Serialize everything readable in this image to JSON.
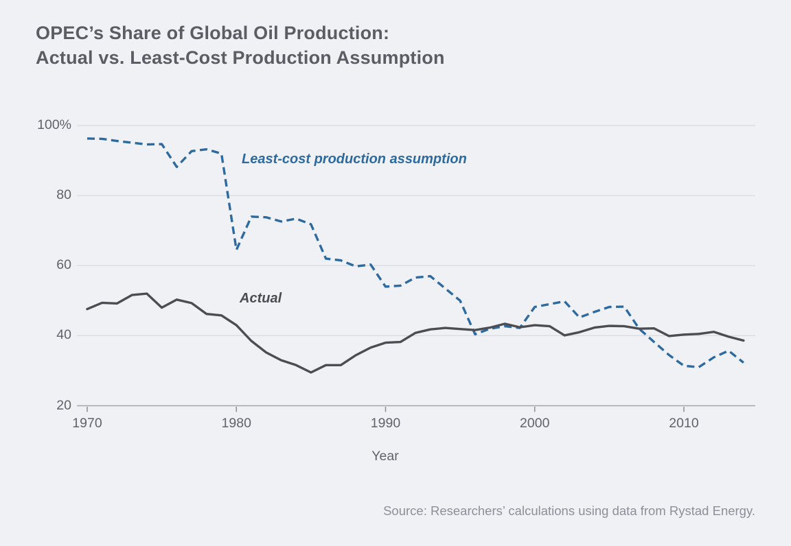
{
  "title": {
    "line1": "OPEC’s Share of Global Oil Production:",
    "line2": "Actual vs. Least-Cost Production Assumption"
  },
  "chart_data": {
    "type": "line",
    "x": [
      1970,
      1971,
      1972,
      1973,
      1974,
      1975,
      1976,
      1977,
      1978,
      1979,
      1980,
      1981,
      1982,
      1983,
      1984,
      1985,
      1986,
      1987,
      1988,
      1989,
      1990,
      1991,
      1992,
      1993,
      1994,
      1995,
      1996,
      1997,
      1998,
      1999,
      2000,
      2001,
      2002,
      2003,
      2004,
      2005,
      2006,
      2007,
      2008,
      2009,
      2010,
      2011,
      2012,
      2013,
      2014
    ],
    "series": [
      {
        "name": "Least-cost production assumption",
        "style": "dashed",
        "color": "#2d6aa0",
        "values": [
          96.3,
          96.2,
          95.6,
          95.1,
          94.6,
          94.7,
          88.2,
          92.7,
          93.2,
          92.0,
          64.5,
          74.0,
          73.8,
          72.6,
          73.4,
          71.8,
          62.0,
          61.5,
          59.8,
          60.3,
          54.0,
          54.3,
          56.6,
          57.0,
          53.5,
          50.0,
          40.4,
          42.0,
          42.7,
          42.2,
          48.2,
          49.0,
          49.8,
          45.2,
          46.8,
          48.2,
          48.3,
          42.0,
          38.2,
          34.5,
          31.4,
          31.0,
          33.8,
          35.7,
          32.3
        ]
      },
      {
        "name": "Actual",
        "style": "solid",
        "color": "#4c4d52",
        "values": [
          47.6,
          49.4,
          49.2,
          51.6,
          52.0,
          48.0,
          50.3,
          49.3,
          46.2,
          45.8,
          43.0,
          38.5,
          35.2,
          33.0,
          31.6,
          29.5,
          31.6,
          31.6,
          34.4,
          36.6,
          38.0,
          38.2,
          40.8,
          41.8,
          42.2,
          41.9,
          41.6,
          42.3,
          43.4,
          42.4,
          43.0,
          42.7,
          40.1,
          41.0,
          42.3,
          42.8,
          42.7,
          42.0,
          42.1,
          39.9,
          40.3,
          40.5,
          41.1,
          39.7,
          38.6
        ]
      }
    ],
    "annotations": [
      {
        "text": "Least-cost production assumption",
        "color": "#2d6aa0"
      },
      {
        "text": "Actual",
        "color": "#4c4d52"
      }
    ],
    "xlabel": "Year",
    "ylabel": "",
    "ylim": [
      20,
      100
    ],
    "yticks": [
      20,
      40,
      60,
      80,
      100
    ],
    "ytick_labels": [
      "20",
      "40",
      "60",
      "80",
      "100%"
    ],
    "xticks": [
      1970,
      1980,
      1990,
      2000,
      2010
    ],
    "grid": "horizontal-on",
    "legend_position": "inline-annotations",
    "colors": {
      "background": "#eff1f5",
      "gridline": "#d8dade",
      "axis_line": "#a1a4a9",
      "tick_mark": "#8f9298"
    }
  },
  "source": "Source: Researchers’ calculations using data from Rystad Energy."
}
